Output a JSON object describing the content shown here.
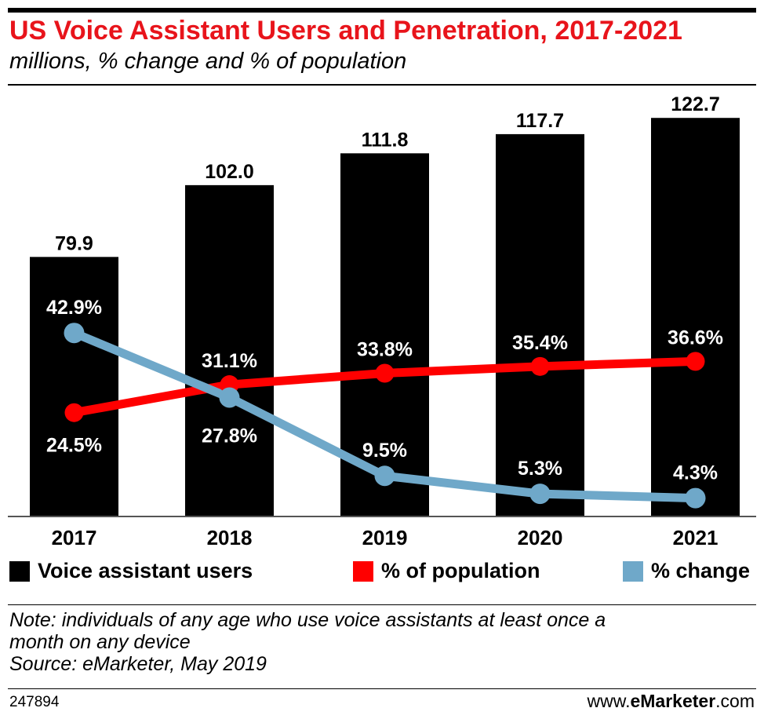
{
  "header": {
    "title": "US Voice Assistant Users and Penetration, 2017-2021",
    "subtitle": "millions, % change and % of population"
  },
  "chart_data": {
    "type": "bar",
    "categories": [
      "2017",
      "2018",
      "2019",
      "2020",
      "2021"
    ],
    "series": [
      {
        "name": "Voice assistant users",
        "type": "bar",
        "values": [
          79.9,
          102.0,
          111.8,
          117.7,
          122.7
        ],
        "labels": [
          "79.9",
          "102.0",
          "111.8",
          "117.7",
          "122.7"
        ],
        "color": "#000000"
      },
      {
        "name": "% of population",
        "type": "line",
        "values": [
          24.5,
          31.1,
          33.8,
          35.4,
          36.6
        ],
        "labels": [
          "24.5%",
          "31.1%",
          "33.8%",
          "35.4%",
          "36.6%"
        ],
        "color": "#ff0000"
      },
      {
        "name": "% change",
        "type": "line",
        "values": [
          42.9,
          27.8,
          9.5,
          5.3,
          4.3
        ],
        "labels": [
          "42.9%",
          "27.8%",
          "9.5%",
          "5.3%",
          "4.3%"
        ],
        "color": "#6fa8c9"
      }
    ],
    "ylim_users": [
      0,
      130
    ],
    "legend_position": "bottom",
    "grid": false
  },
  "legend": {
    "users": "Voice assistant users",
    "population": "% of population",
    "change": "% change"
  },
  "note": {
    "line1": "Note: individuals of any age who use voice assistants at least once a",
    "line2": "month on any device",
    "line3": "Source: eMarketer, May 2019"
  },
  "footer": {
    "chart_id": "247894",
    "brand_prefix": "www.",
    "brand_bold": "eMarketer",
    "brand_suffix": ".com"
  },
  "colors": {
    "title": "#e8141b",
    "bar": "#000000",
    "population_line": "#ff0000",
    "change_line": "#6fa8c9"
  }
}
